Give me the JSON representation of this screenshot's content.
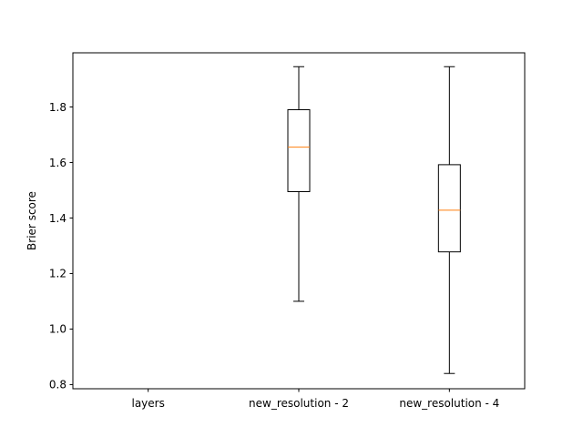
{
  "chart_data": {
    "type": "box",
    "title": "",
    "xlabel": "",
    "ylabel": "Brier score",
    "ylim": [
      0.785,
      1.995
    ],
    "yticks": [
      0.8,
      1.0,
      1.2,
      1.4,
      1.6,
      1.8
    ],
    "ytick_labels": [
      "0.8",
      "1.0",
      "1.2",
      "1.4",
      "1.6",
      "1.8"
    ],
    "grid": false,
    "categories": [
      "layers",
      "new_resolution - 2",
      "new_resolution - 4"
    ],
    "boxes": [
      {
        "name": "layers",
        "min": null,
        "q1": null,
        "median": null,
        "q3": null,
        "max": null
      },
      {
        "name": "new_resolution - 2",
        "min": 1.1,
        "q1": 1.495,
        "median": 1.655,
        "q3": 1.79,
        "max": 1.945
      },
      {
        "name": "new_resolution - 4",
        "min": 0.84,
        "q1": 1.278,
        "median": 1.428,
        "q3": 1.592,
        "max": 1.945
      }
    ],
    "colors": {
      "box": "#000000",
      "median": "#ff7f0e",
      "axes": "#000000"
    }
  }
}
